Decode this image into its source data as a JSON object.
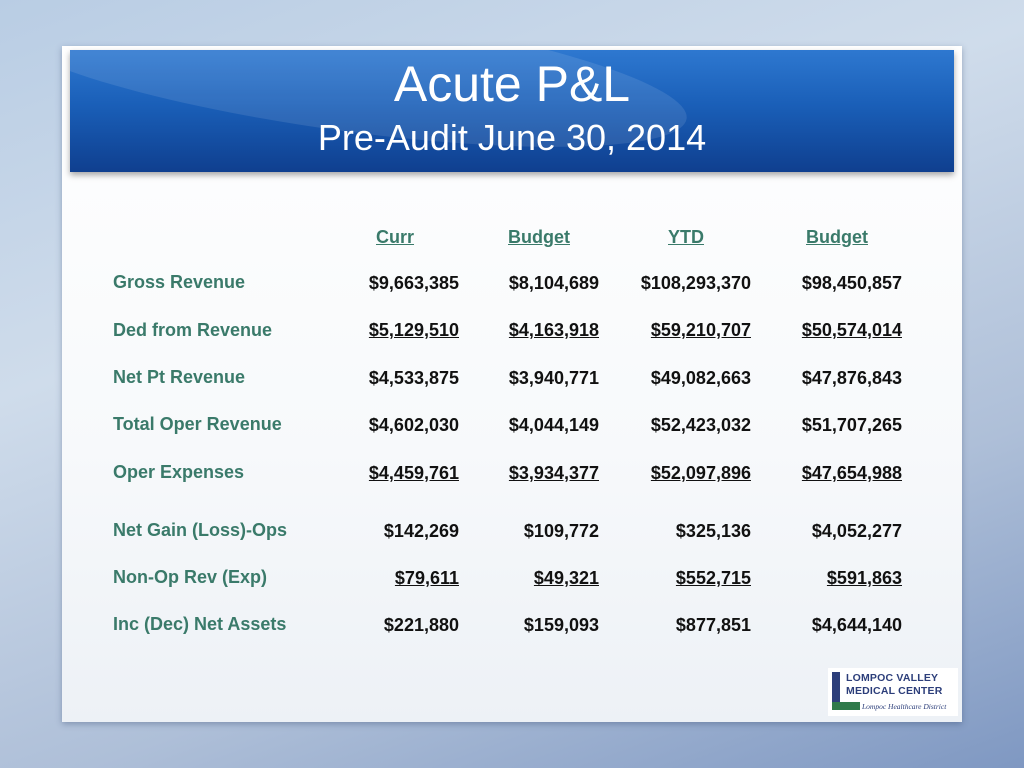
{
  "title": "Acute P&L",
  "subtitle": "Pre-Audit June 30, 2014",
  "columns": [
    "Curr",
    "Budget",
    "YTD",
    "Budget"
  ],
  "rows": [
    {
      "label": "Gross Revenue",
      "values": [
        "$9,663,385",
        "$8,104,689",
        "$108,293,370",
        "$98,450,857"
      ],
      "underline": false
    },
    {
      "label": "Ded from Revenue",
      "values": [
        "$5,129,510",
        "$4,163,918",
        "$59,210,707",
        "$50,574,014"
      ],
      "underline": true
    },
    {
      "label": "Net Pt Revenue",
      "values": [
        "$4,533,875",
        "$3,940,771",
        "$49,082,663",
        "$47,876,843"
      ],
      "underline": false
    },
    {
      "label": "Total Oper Revenue",
      "values": [
        "$4,602,030",
        "$4,044,149",
        "$52,423,032",
        "$51,707,265"
      ],
      "underline": false
    },
    {
      "label": "Oper Expenses",
      "values": [
        "$4,459,761",
        "$3,934,377",
        "$52,097,896",
        "$47,654,988"
      ],
      "underline": true
    },
    {
      "label": "Net Gain (Loss)-Ops",
      "values": [
        "$142,269",
        "$109,772",
        "$325,136",
        "$4,052,277"
      ],
      "underline": false
    },
    {
      "label": "Non-Op Rev (Exp)",
      "values": [
        "$79,611",
        "$49,321",
        "$552,715",
        "$591,863"
      ],
      "underline": true
    },
    {
      "label": "Inc (Dec) Net Assets",
      "values": [
        "$221,880",
        "$159,093",
        "$877,851",
        "$4,644,140"
      ],
      "underline": false
    }
  ],
  "logo": {
    "line1": "LOMPOC VALLEY",
    "line2": "MEDICAL CENTER",
    "tagline": "Lompoc Healthcare District"
  }
}
